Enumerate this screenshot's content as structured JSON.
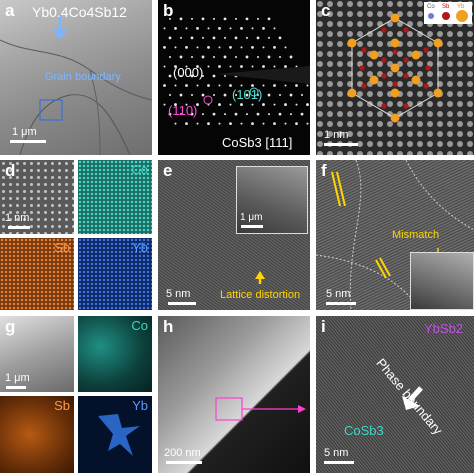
{
  "panels": {
    "a": {
      "label": "a",
      "title": "Yb0.4Co4Sb12",
      "annotation": "Grain boundary",
      "scale": "1 μm"
    },
    "b": {
      "label": "b",
      "spot_000": "(000)",
      "spot_110": "(110)",
      "spot_101": "(101)",
      "caption": "CoSb3 [111]"
    },
    "c": {
      "label": "c",
      "scale": "1 nm",
      "legend": [
        "Co",
        "Sb",
        "Yb"
      ]
    },
    "d": {
      "label": "d",
      "maps": [
        "Co",
        "Sb",
        "Yb"
      ],
      "scale": "1 nm"
    },
    "e": {
      "label": "e",
      "annotation": "Lattice distortion",
      "scale": "5 nm",
      "inset_scale": "1 μm"
    },
    "f": {
      "label": "f",
      "annotation": "Mismatch",
      "scale": "5 nm"
    },
    "g": {
      "label": "g",
      "maps": [
        "Co",
        "Sb",
        "Yb"
      ],
      "scale": "1 μm"
    },
    "h": {
      "label": "h",
      "scale": "200 nm"
    },
    "i": {
      "label": "i",
      "phase_top": "YbSb2",
      "phase_text": "Phase boundary",
      "phase_bottom": "CoSb3",
      "scale": "5 nm"
    }
  },
  "colors": {
    "co_map": "#2fb8a8",
    "sb_map": "#c8641e",
    "yb_map": "#2e6fd6",
    "annot_blue": "#7fb4ff",
    "annot_yellow": "#ffd400",
    "magenta": "#ff4fd8",
    "cyan": "#4fe0d0"
  }
}
